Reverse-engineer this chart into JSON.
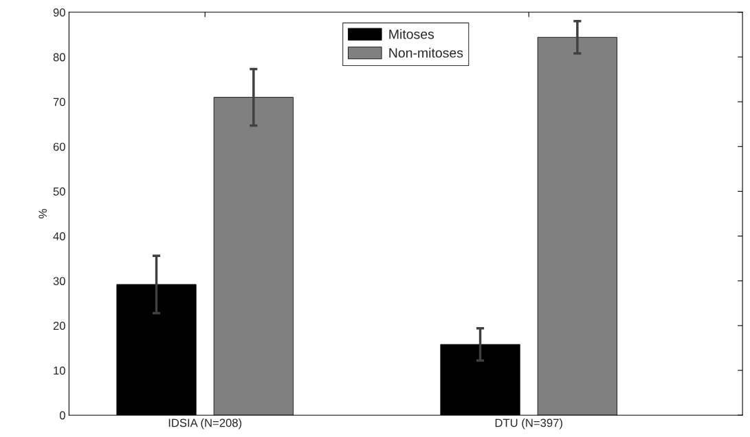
{
  "chart_data": {
    "type": "bar",
    "ylabel": "%",
    "categories": [
      "IDSIA (N=208)",
      "DTU (N=397)"
    ],
    "series": [
      {
        "name": "Mitoses",
        "color": "#000000",
        "values": [
          29.2,
          15.8
        ],
        "errors": [
          6.4,
          3.6
        ]
      },
      {
        "name": "Non-mitoses",
        "color": "#808080",
        "values": [
          71.0,
          84.4
        ],
        "errors": [
          6.3,
          3.6
        ]
      }
    ],
    "ylim": [
      0,
      90
    ],
    "yticks": [
      0,
      10,
      20,
      30,
      40,
      50,
      60,
      70,
      80,
      90
    ],
    "grid": false,
    "legend": "top"
  }
}
